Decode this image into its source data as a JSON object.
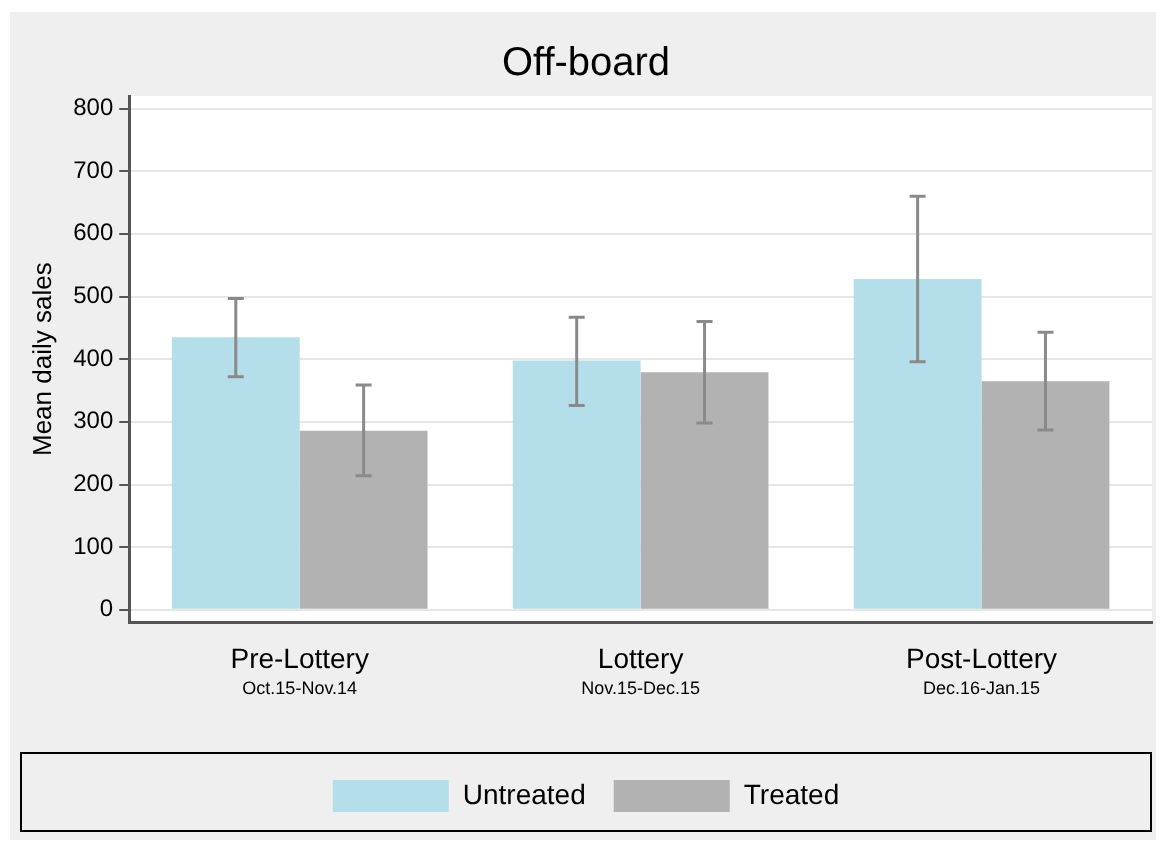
{
  "chart_data": {
    "type": "bar",
    "title": "Off-board",
    "ylabel": "Mean daily sales",
    "categories": [
      "Pre-Lottery\nOct.15-Nov.14",
      "Lottery\nNov.15-Dec.15",
      "Post-Lottery\nDec.16-Jan.15"
    ],
    "series": [
      {
        "name": "Untreated",
        "color": "#b4dfea",
        "values": [
          435,
          398,
          528
        ],
        "errors": [
          [
            372,
            497
          ],
          [
            326,
            467
          ],
          [
            396,
            660
          ]
        ]
      },
      {
        "name": "Treated",
        "color": "#b2b2b2",
        "values": [
          286,
          379,
          365
        ],
        "errors": [
          [
            214,
            359
          ],
          [
            298,
            460
          ],
          [
            287,
            443
          ]
        ]
      }
    ],
    "ylim": [
      -20,
      820
    ],
    "yticks": [
      0,
      100,
      200,
      300,
      400,
      500,
      600,
      700,
      800
    ],
    "grid": "y",
    "legend": "bottom"
  }
}
